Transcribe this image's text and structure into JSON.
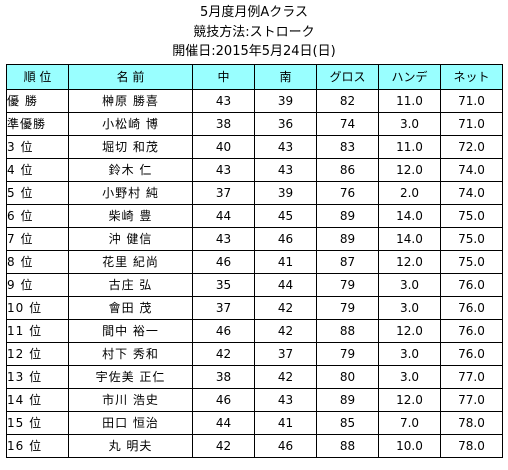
{
  "header": {
    "title": "5月度月例Aクラス",
    "method": "競技方法:ストローク",
    "date": "開催日:2015年5月24日(日)"
  },
  "table": {
    "columns": [
      "順 位",
      "名 前",
      "中",
      "南",
      "グロス",
      "ハンデ",
      "ネット"
    ],
    "rows": [
      {
        "rank": "優 勝",
        "name": "榊原 勝喜",
        "out": "43",
        "in": "39",
        "gross": "82",
        "handicap": "11.0",
        "net": "71.0"
      },
      {
        "rank": "準優勝",
        "name": "小松崎 博",
        "out": "38",
        "in": "36",
        "gross": "74",
        "handicap": "3.0",
        "net": "71.0"
      },
      {
        "rank": "3 位",
        "name": "堀切 和茂",
        "out": "40",
        "in": "43",
        "gross": "83",
        "handicap": "11.0",
        "net": "72.0"
      },
      {
        "rank": "4 位",
        "name": "鈴木 仁",
        "out": "43",
        "in": "43",
        "gross": "86",
        "handicap": "12.0",
        "net": "74.0"
      },
      {
        "rank": "5 位",
        "name": "小野村 純",
        "out": "37",
        "in": "39",
        "gross": "76",
        "handicap": "2.0",
        "net": "74.0"
      },
      {
        "rank": "6 位",
        "name": "柴崎 豊",
        "out": "44",
        "in": "45",
        "gross": "89",
        "handicap": "14.0",
        "net": "75.0"
      },
      {
        "rank": "7 位",
        "name": "沖 健信",
        "out": "43",
        "in": "46",
        "gross": "89",
        "handicap": "14.0",
        "net": "75.0"
      },
      {
        "rank": "8 位",
        "name": "花里 紀尚",
        "out": "46",
        "in": "41",
        "gross": "87",
        "handicap": "12.0",
        "net": "75.0"
      },
      {
        "rank": "9 位",
        "name": "古庄 弘",
        "out": "35",
        "in": "44",
        "gross": "79",
        "handicap": "3.0",
        "net": "76.0"
      },
      {
        "rank": "10 位",
        "name": "會田 茂",
        "out": "37",
        "in": "42",
        "gross": "79",
        "handicap": "3.0",
        "net": "76.0"
      },
      {
        "rank": "11 位",
        "name": "間中 裕一",
        "out": "46",
        "in": "42",
        "gross": "88",
        "handicap": "12.0",
        "net": "76.0"
      },
      {
        "rank": "12 位",
        "name": "村下 秀和",
        "out": "42",
        "in": "37",
        "gross": "79",
        "handicap": "3.0",
        "net": "76.0"
      },
      {
        "rank": "13 位",
        "name": "宇佐美 正仁",
        "out": "38",
        "in": "42",
        "gross": "80",
        "handicap": "3.0",
        "net": "77.0"
      },
      {
        "rank": "14 位",
        "name": "市川 浩史",
        "out": "46",
        "in": "43",
        "gross": "89",
        "handicap": "12.0",
        "net": "77.0"
      },
      {
        "rank": "15 位",
        "name": "田口 恒治",
        "out": "44",
        "in": "41",
        "gross": "85",
        "handicap": "7.0",
        "net": "78.0"
      },
      {
        "rank": "16 位",
        "name": "丸 明夫",
        "out": "42",
        "in": "46",
        "gross": "88",
        "handicap": "10.0",
        "net": "78.0"
      }
    ]
  },
  "colors": {
    "header_bg": "#99ffff",
    "border": "#000000"
  }
}
